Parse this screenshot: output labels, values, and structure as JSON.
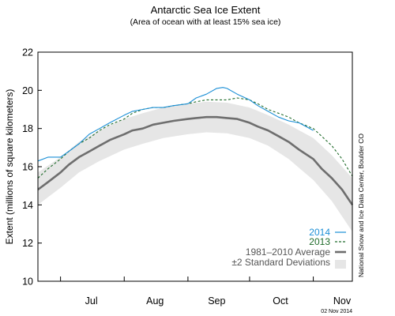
{
  "chart_data": {
    "type": "line",
    "title": "Antarctic Sea Ice Extent",
    "subtitle": "(Area of ocean with at least 15% sea ice)",
    "ylabel": "Extent (millions of square kilometers)",
    "xlabel": "",
    "ylim": [
      10,
      22
    ],
    "yticks": [
      10,
      12,
      14,
      16,
      18,
      20,
      22
    ],
    "xlim": [
      "2014-06-20",
      "2014-11-20"
    ],
    "month_labels": [
      {
        "label": "Jul",
        "center": "2014-07-16"
      },
      {
        "label": "Aug",
        "center": "2014-08-16"
      },
      {
        "label": "Sep",
        "center": "2014-09-15"
      },
      {
        "label": "Oct",
        "center": "2014-10-16"
      },
      {
        "label": "Nov",
        "center": "2014-11-15"
      }
    ],
    "month_boundaries": [
      "2014-07-01",
      "2014-08-01",
      "2014-09-01",
      "2014-10-01",
      "2014-11-01"
    ],
    "legend_position": "bottom-right",
    "grid": false,
    "credit": "National Snow and Ice Data Center, Boulder CO",
    "date_stamp": "02 Nov 2014",
    "series": [
      {
        "name": "2014",
        "style": "solid",
        "color": "#1b8fd6",
        "x": [
          "2014-06-20",
          "2014-06-25",
          "2014-07-01",
          "2014-07-05",
          "2014-07-10",
          "2014-07-15",
          "2014-07-20",
          "2014-07-25",
          "2014-08-01",
          "2014-08-05",
          "2014-08-10",
          "2014-08-15",
          "2014-08-20",
          "2014-08-25",
          "2014-09-01",
          "2014-09-05",
          "2014-09-10",
          "2014-09-15",
          "2014-09-18",
          "2014-09-20",
          "2014-09-25",
          "2014-10-01",
          "2014-10-05",
          "2014-10-10",
          "2014-10-15",
          "2014-10-20",
          "2014-10-25",
          "2014-11-01"
        ],
        "values": [
          16.3,
          16.5,
          16.5,
          16.8,
          17.2,
          17.7,
          18.0,
          18.3,
          18.7,
          18.9,
          19.0,
          19.1,
          19.1,
          19.2,
          19.3,
          19.6,
          19.8,
          20.1,
          20.15,
          20.1,
          19.8,
          19.5,
          19.2,
          18.9,
          18.6,
          18.4,
          18.3,
          17.9
        ]
      },
      {
        "name": "2013",
        "style": "dashed",
        "color": "#1f6b2a",
        "x": [
          "2014-06-20",
          "2014-06-25",
          "2014-07-01",
          "2014-07-05",
          "2014-07-10",
          "2014-07-15",
          "2014-07-20",
          "2014-07-25",
          "2014-08-01",
          "2014-08-05",
          "2014-08-10",
          "2014-08-15",
          "2014-08-20",
          "2014-08-25",
          "2014-09-01",
          "2014-09-05",
          "2014-09-10",
          "2014-09-15",
          "2014-09-20",
          "2014-09-25",
          "2014-10-01",
          "2014-10-05",
          "2014-10-10",
          "2014-10-15",
          "2014-10-20",
          "2014-10-25",
          "2014-11-01",
          "2014-11-05",
          "2014-11-10",
          "2014-11-15",
          "2014-11-20"
        ],
        "values": [
          15.4,
          15.9,
          16.4,
          16.8,
          17.2,
          17.5,
          17.9,
          18.2,
          18.5,
          18.8,
          19.0,
          19.1,
          19.1,
          19.2,
          19.3,
          19.4,
          19.5,
          19.5,
          19.5,
          19.6,
          19.5,
          19.3,
          19.0,
          18.8,
          18.6,
          18.3,
          18.0,
          17.6,
          17.1,
          16.4,
          15.5
        ]
      },
      {
        "name": "1981–2010 Average",
        "style": "solid",
        "color": "#6e6e6e",
        "x": [
          "2014-06-20",
          "2014-06-25",
          "2014-07-01",
          "2014-07-05",
          "2014-07-10",
          "2014-07-15",
          "2014-07-20",
          "2014-07-25",
          "2014-08-01",
          "2014-08-05",
          "2014-08-10",
          "2014-08-15",
          "2014-08-20",
          "2014-08-25",
          "2014-09-01",
          "2014-09-05",
          "2014-09-10",
          "2014-09-15",
          "2014-09-20",
          "2014-09-25",
          "2014-10-01",
          "2014-10-05",
          "2014-10-10",
          "2014-10-15",
          "2014-10-20",
          "2014-10-25",
          "2014-11-01",
          "2014-11-05",
          "2014-11-10",
          "2014-11-15",
          "2014-11-20"
        ],
        "values": [
          14.8,
          15.2,
          15.7,
          16.1,
          16.5,
          16.8,
          17.1,
          17.4,
          17.7,
          17.9,
          18.0,
          18.2,
          18.3,
          18.4,
          18.5,
          18.55,
          18.6,
          18.6,
          18.55,
          18.5,
          18.3,
          18.1,
          17.9,
          17.6,
          17.3,
          16.9,
          16.4,
          15.9,
          15.4,
          14.8,
          14.0
        ]
      }
    ],
    "band": {
      "name": "±2 Standard Deviations",
      "color": "#e6e6e6",
      "x": [
        "2014-06-20",
        "2014-07-01",
        "2014-07-10",
        "2014-07-20",
        "2014-08-01",
        "2014-08-10",
        "2014-08-20",
        "2014-09-01",
        "2014-09-10",
        "2014-09-20",
        "2014-10-01",
        "2014-10-10",
        "2014-10-20",
        "2014-11-01",
        "2014-11-10",
        "2014-11-20"
      ],
      "upper": [
        15.7,
        16.5,
        17.3,
        17.9,
        18.5,
        18.8,
        19.1,
        19.3,
        19.4,
        19.35,
        19.1,
        18.7,
        18.2,
        17.5,
        16.6,
        15.4
      ],
      "lower": [
        14.0,
        14.9,
        15.7,
        16.3,
        16.9,
        17.2,
        17.5,
        17.7,
        17.8,
        17.75,
        17.5,
        17.1,
        16.4,
        15.3,
        14.2,
        12.6
      ]
    }
  }
}
